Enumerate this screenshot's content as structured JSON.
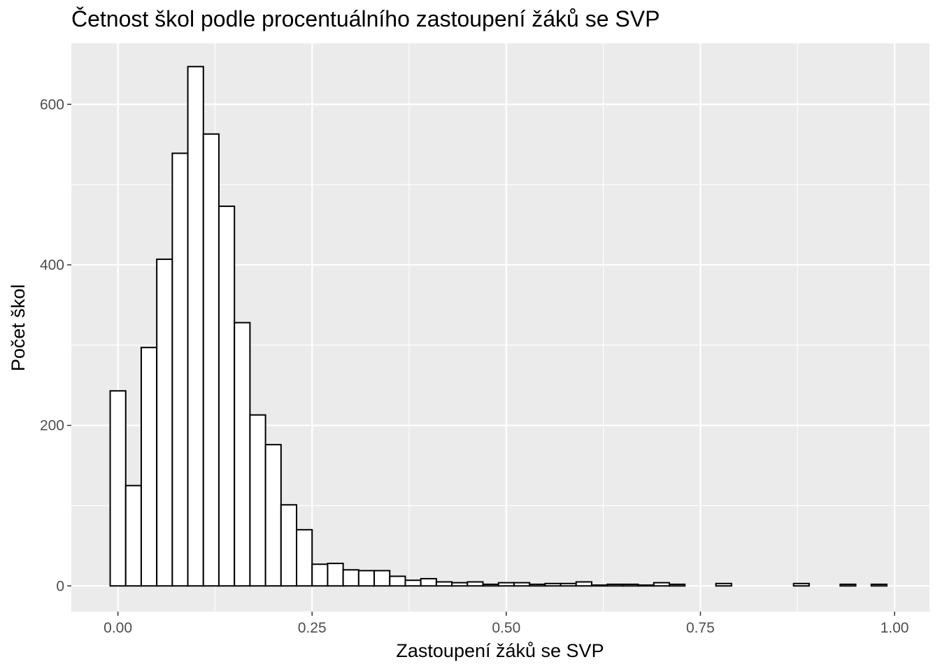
{
  "chart_data": {
    "type": "bar",
    "subtype": "histogram",
    "title": "Četnost škol podle procentuálního zastoupení žáků se SVP",
    "xlabel": "Zastoupení žáků se SVP",
    "ylabel": "Počet škol",
    "xlim": [
      -0.06,
      1.045
    ],
    "ylim": [
      -32,
      676
    ],
    "x_ticks": [
      0,
      0.25,
      0.5,
      0.75,
      1.0
    ],
    "x_tick_labels": [
      "0.00",
      "0.25",
      "0.50",
      "0.75",
      "1.00"
    ],
    "y_ticks": [
      0,
      200,
      400,
      600
    ],
    "y_tick_labels": [
      "0",
      "200",
      "400",
      "600"
    ],
    "grid": true,
    "bin_width": 0.02,
    "bin_start": -0.01,
    "bin_fill": "#ffffff",
    "bin_stroke": "#000000",
    "panel_background": "#ebebeb",
    "grid_color": "#ffffff",
    "counts": [
      243,
      125,
      297,
      407,
      539,
      647,
      563,
      473,
      328,
      213,
      176,
      101,
      70,
      27,
      28,
      20,
      19,
      19,
      12,
      7,
      9,
      5,
      4,
      5,
      2,
      4,
      4,
      2,
      3,
      3,
      5,
      1,
      2,
      2,
      1,
      4,
      2,
      0,
      0,
      3,
      0,
      0,
      0,
      0,
      3,
      0,
      0,
      2,
      0,
      2
    ]
  }
}
